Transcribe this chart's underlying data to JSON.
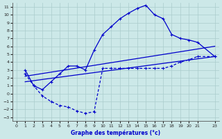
{
  "xlabel": "Graphe des températures (°c)",
  "bg_color": "#cce8e8",
  "line_color": "#0000cc",
  "grid_color": "#aacccc",
  "axis_color": "#555555",
  "xlim": [
    -0.5,
    23.5
  ],
  "ylim": [
    -3.5,
    11.5
  ],
  "xticks": [
    0,
    1,
    2,
    3,
    4,
    5,
    6,
    7,
    8,
    9,
    10,
    11,
    12,
    13,
    14,
    15,
    16,
    17,
    18,
    19,
    20,
    21,
    23
  ],
  "yticks": [
    -3,
    -2,
    -1,
    0,
    1,
    2,
    3,
    4,
    5,
    6,
    7,
    8,
    9,
    10,
    11
  ],
  "curve1_x": [
    1,
    2,
    3,
    4,
    5,
    6,
    7,
    8,
    9,
    10,
    11,
    12,
    13,
    14,
    15,
    16,
    17,
    18,
    19,
    20,
    21,
    23
  ],
  "curve1_y": [
    3.0,
    1.0,
    0.5,
    1.5,
    2.5,
    3.5,
    3.5,
    3.0,
    5.5,
    7.5,
    8.5,
    9.5,
    10.2,
    10.8,
    11.2,
    10.0,
    9.5,
    7.5,
    7.0,
    6.8,
    6.5,
    4.7
  ],
  "curve2_x": [
    1,
    2,
    3,
    4,
    5,
    6,
    7,
    8,
    9,
    10,
    11,
    12,
    13,
    14,
    15,
    16,
    17,
    18,
    19,
    20,
    21,
    23
  ],
  "curve2_y": [
    2.5,
    1.0,
    -0.3,
    -1.0,
    -1.5,
    -1.7,
    -2.2,
    -2.5,
    -2.3,
    3.2,
    3.2,
    3.2,
    3.2,
    3.2,
    3.2,
    3.2,
    3.2,
    3.5,
    4.0,
    4.3,
    4.7,
    4.7
  ],
  "line1_x": [
    1,
    23
  ],
  "line1_y": [
    2.2,
    6.0
  ],
  "line2_x": [
    1,
    23
  ],
  "line2_y": [
    1.5,
    4.7
  ]
}
